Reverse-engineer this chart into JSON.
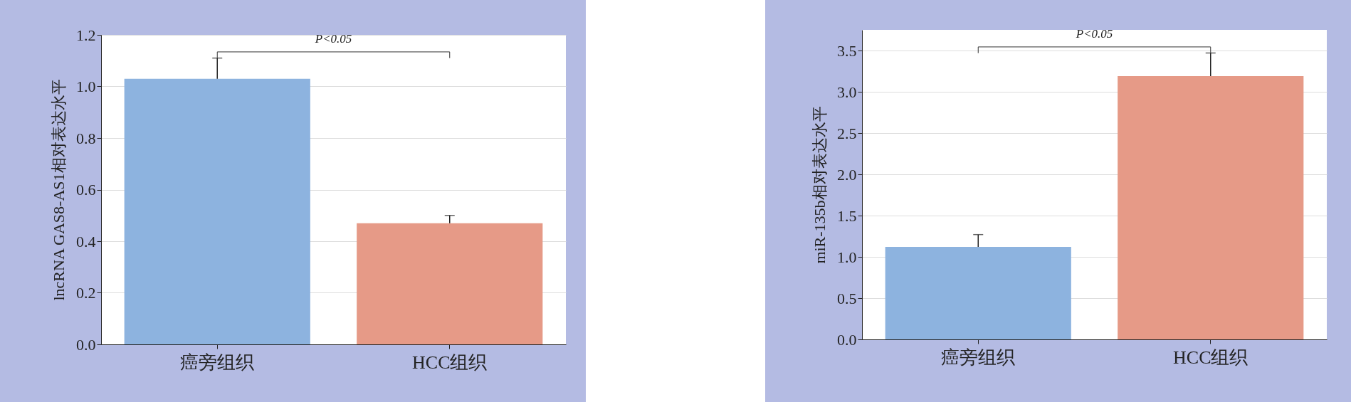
{
  "chart_data": [
    {
      "type": "bar",
      "ylabel": "lncRNA GAS8-AS1相对表达水平",
      "categories": [
        "癌旁组织",
        "HCC组织"
      ],
      "values": [
        1.03,
        0.47
      ],
      "colors": [
        "#8db3df",
        "#e69a87"
      ],
      "errors": [
        [
          1.03,
          1.11
        ],
        [
          0.47,
          0.5
        ]
      ],
      "ylim": [
        0,
        1.2
      ],
      "yticks": [
        {
          "value": 0,
          "label": "0.0"
        },
        0.2,
        0.4,
        0.6,
        0.8,
        {
          "value": 1,
          "label": "1.0"
        },
        1.2
      ],
      "grid": "y",
      "annotations": [
        "P<0.05"
      ]
    },
    {
      "type": "bar",
      "ylabel": "miR-135b相对表达水平",
      "categories": [
        "癌旁组织",
        "HCC组织"
      ],
      "values": [
        1.12,
        3.19
      ],
      "colors": [
        "#8db3df",
        "#e69a87"
      ],
      "errors": [
        [
          1.12,
          1.27
        ],
        [
          3.19,
          3.47
        ]
      ],
      "ylim": [
        0,
        3.75
      ],
      "yticks": [
        {
          "value": 0,
          "label": "0.0"
        },
        0.5,
        {
          "value": 1,
          "label": "1.0"
        },
        1.5,
        {
          "value": 2,
          "label": "2.0"
        },
        2.5,
        {
          "value": 3,
          "label": "3.0"
        },
        3.5
      ],
      "grid": "y",
      "annotations": [
        "P<0.05"
      ]
    }
  ]
}
